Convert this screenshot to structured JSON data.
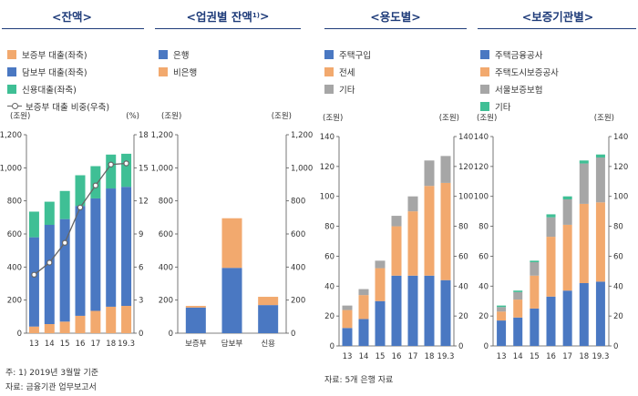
{
  "titles": {
    "balance": "<잔액>",
    "sector_main": "<업권별 잔액",
    "sector_sup": "1)",
    "sector_close": ">",
    "usage": "<용도별>",
    "guarantor": "<보증기관별>"
  },
  "legends": {
    "balance": [
      {
        "label": "보증부 대출(좌축)",
        "color": "#f2a96e"
      },
      {
        "label": "담보부 대출(좌축)",
        "color": "#4a78c2"
      },
      {
        "label": "신용대출(좌축)",
        "color": "#3fbf95"
      },
      {
        "label": "보증부 대출 비중(우축)",
        "type": "line"
      }
    ],
    "sector": [
      {
        "label": "은행",
        "color": "#4a78c2"
      },
      {
        "label": "비은행",
        "color": "#f2a96e"
      }
    ],
    "usage": [
      {
        "label": "주택구입",
        "color": "#4a78c2"
      },
      {
        "label": "전세",
        "color": "#f2a96e"
      },
      {
        "label": "기타",
        "color": "#a6a6a6"
      }
    ],
    "guarantor": [
      {
        "label": "주택금융공사",
        "color": "#4a78c2"
      },
      {
        "label": "주택도시보증공사",
        "color": "#f2a96e"
      },
      {
        "label": "서울보증보험",
        "color": "#a6a6a6"
      },
      {
        "label": "기타",
        "color": "#3fbf95"
      }
    ]
  },
  "notes": {
    "balance_note": "주: 1) 2019년 3월말 기준",
    "balance_source": "자료: 금융기관 업무보고서",
    "usage_source": "자료: 5개 은행 자료"
  },
  "chart_data": [
    {
      "type": "bar",
      "stacked": true,
      "categories": [
        "13",
        "14",
        "15",
        "16",
        "17",
        "18",
        "19.3"
      ],
      "series": [
        {
          "name": "보증부 대출(좌축)",
          "values": [
            40,
            55,
            70,
            105,
            135,
            160,
            165
          ],
          "color": "#f2a96e"
        },
        {
          "name": "담보부 대출(좌축)",
          "values": [
            540,
            600,
            620,
            665,
            680,
            715,
            720
          ],
          "color": "#4a78c2"
        },
        {
          "name": "신용대출(좌축)",
          "values": [
            155,
            140,
            170,
            185,
            195,
            205,
            200
          ],
          "color": "#3fbf95"
        }
      ],
      "line": {
        "name": "보증부 대출 비중(우축)",
        "values": [
          5.3,
          6.4,
          8.2,
          11.4,
          13.4,
          15.3,
          15.4
        ]
      },
      "y_left": {
        "unit": "(조원)",
        "min": 0,
        "max": 1200,
        "ticks": [
          "0",
          "200",
          "400",
          "600",
          "800",
          "1,000",
          "1,200"
        ]
      },
      "y_right": {
        "unit": "(%)",
        "min": 0,
        "max": 18,
        "ticks": [
          "0",
          "3",
          "6",
          "9",
          "12",
          "15",
          "18"
        ]
      },
      "grid": false
    },
    {
      "type": "bar",
      "stacked": true,
      "categories": [
        "보증부",
        "담보부",
        "신용"
      ],
      "series": [
        {
          "name": "은행",
          "values": [
            155,
            395,
            170
          ],
          "color": "#4a78c2"
        },
        {
          "name": "비은행",
          "values": [
            10,
            300,
            50
          ],
          "color": "#f2a96e"
        }
      ],
      "y_left": {
        "unit": "(조원)",
        "min": 0,
        "max": 1200,
        "ticks": [
          "0",
          "200",
          "400",
          "600",
          "800",
          "1,000",
          "1,200"
        ]
      },
      "y_right": {
        "unit": "(조원)",
        "min": 0,
        "max": 1200,
        "ticks": [
          "0",
          "200",
          "400",
          "600",
          "800",
          "1,000",
          "1,200"
        ]
      },
      "grid": false
    },
    {
      "type": "bar",
      "stacked": true,
      "categories": [
        "13",
        "14",
        "15",
        "16",
        "17",
        "18",
        "19.3"
      ],
      "series": [
        {
          "name": "주택구입",
          "values": [
            12,
            18,
            30,
            47,
            47,
            47,
            44
          ],
          "color": "#4a78c2"
        },
        {
          "name": "전세",
          "values": [
            12,
            16,
            22,
            33,
            43,
            60,
            65
          ],
          "color": "#f2a96e"
        },
        {
          "name": "기타",
          "values": [
            3,
            4,
            5,
            7,
            10,
            17,
            18
          ],
          "color": "#a6a6a6"
        }
      ],
      "y_left": {
        "unit": "(조원)",
        "min": 0,
        "max": 140,
        "ticks": [
          "0",
          "20",
          "40",
          "60",
          "80",
          "100",
          "120",
          "140"
        ]
      },
      "y_right": {
        "unit": "(조원)",
        "min": 0,
        "max": 140,
        "ticks": [
          "0",
          "20",
          "40",
          "60",
          "80",
          "100",
          "120",
          "140"
        ]
      },
      "grid": false
    },
    {
      "type": "bar",
      "stacked": true,
      "categories": [
        "13",
        "14",
        "15",
        "16",
        "17",
        "18",
        "19.3"
      ],
      "series": [
        {
          "name": "주택금융공사",
          "values": [
            17,
            19,
            25,
            33,
            37,
            42,
            43
          ],
          "color": "#4a78c2"
        },
        {
          "name": "주택도시보증공사",
          "values": [
            6,
            12,
            22,
            40,
            44,
            53,
            53
          ],
          "color": "#f2a96e"
        },
        {
          "name": "서울보증보험",
          "values": [
            3,
            5,
            9,
            13,
            17,
            27,
            30
          ],
          "color": "#a6a6a6"
        },
        {
          "name": "기타",
          "values": [
            1,
            1,
            1,
            2,
            2,
            2,
            2
          ],
          "color": "#3fbf95"
        }
      ],
      "y_left": {
        "unit": "(조원)",
        "min": 0,
        "max": 140,
        "ticks": [
          "0",
          "20",
          "40",
          "60",
          "80",
          "100",
          "120",
          "140"
        ]
      },
      "y_right": {
        "unit": "(조원)",
        "min": 0,
        "max": 140,
        "ticks": [
          "0",
          "20",
          "40",
          "60",
          "80",
          "100",
          "120",
          "140"
        ]
      },
      "grid": false
    }
  ]
}
